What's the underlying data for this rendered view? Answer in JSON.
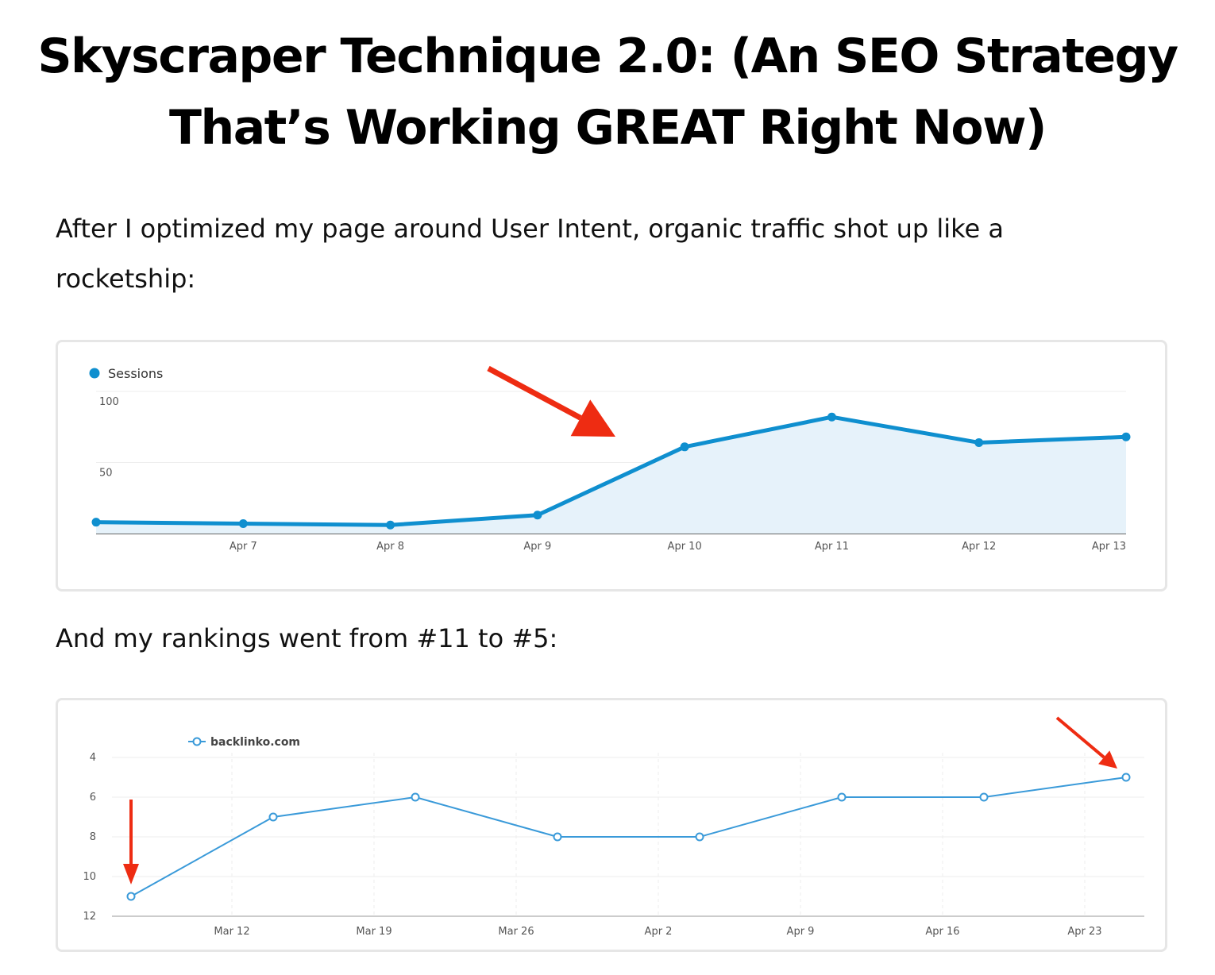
{
  "article": {
    "title": "Skyscraper Technique 2.0: (An SEO Strategy That’s Working GREAT Right Now)",
    "paragraph_1": "After I optimized my page around User Intent, organic traffic shot up like a rocketship:",
    "paragraph_2": "And my rankings went from #11 to #5:"
  },
  "colors": {
    "sessions_line": "#0f8fcf",
    "sessions_fill": "#e6f2fa",
    "rank_line": "#3a9ad9",
    "arrow": "#ee2c12",
    "grid": "#eeeeee",
    "axis": "#666666"
  },
  "chart_data": [
    {
      "type": "area",
      "legend": [
        "Sessions"
      ],
      "legend_position": "top-left",
      "x": [
        "",
        "Apr 7",
        "Apr 8",
        "Apr 9",
        "Apr 10",
        "Apr 11",
        "Apr 12",
        "Apr 13"
      ],
      "series": [
        {
          "name": "Sessions",
          "values": [
            8,
            7,
            6,
            13,
            61,
            82,
            64,
            68
          ]
        }
      ],
      "yticks": [
        50,
        100
      ],
      "ylim": [
        0,
        100
      ],
      "grid": true,
      "annotations": [
        "red arrow pointing to the rise between Apr 9 and Apr 10"
      ]
    },
    {
      "type": "line",
      "legend": [
        "backlinko.com"
      ],
      "legend_position": "top-left",
      "x": [
        "Mar 7",
        "Mar 14",
        "Mar 21",
        "Mar 28",
        "Apr 4",
        "Apr 11",
        "Apr 18",
        "Apr 25"
      ],
      "xticks": [
        "Mar 12",
        "Mar 19",
        "Mar 26",
        "Apr 2",
        "Apr 9",
        "Apr 16",
        "Apr 23"
      ],
      "series": [
        {
          "name": "backlinko.com",
          "values": [
            11,
            7,
            6,
            8,
            8,
            6,
            6,
            5
          ]
        }
      ],
      "yticks": [
        4,
        6,
        8,
        10,
        12
      ],
      "ylim": [
        4,
        12
      ],
      "y_inverted": true,
      "grid": true,
      "annotations": [
        "red arrow pointing at rank 11",
        "red arrow pointing at rank 5"
      ]
    }
  ]
}
